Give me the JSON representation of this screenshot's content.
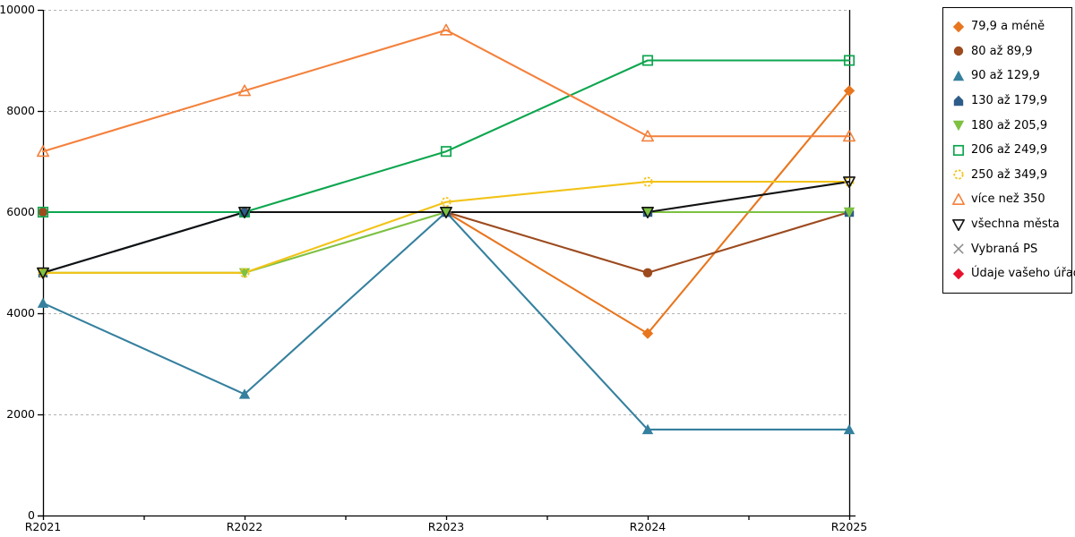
{
  "chart_data": {
    "type": "line",
    "title": "",
    "xlabel": "",
    "ylabel": "",
    "x_categories": [
      "R2021",
      "R2022",
      "R2023",
      "R2024",
      "R2025"
    ],
    "ylim": [
      0,
      10000
    ],
    "y_ticks": [
      0,
      2000,
      4000,
      6000,
      8000,
      10000
    ],
    "grid": "horizontal-dashed",
    "legend_position": "top-right-outside",
    "series": [
      {
        "name": "79,9 a méně",
        "color": "#e8761e",
        "marker": "diamond",
        "values": [
          6000,
          6000,
          6000,
          3600,
          8400
        ]
      },
      {
        "name": "80 až 89,9",
        "color": "#9c4a1e",
        "marker": "circle",
        "values": [
          6000,
          6000,
          6000,
          4800,
          6000
        ]
      },
      {
        "name": "90 až 129,9",
        "color": "#35809e",
        "marker": "triangle-up",
        "values": [
          4200,
          2400,
          6000,
          1700,
          1700
        ]
      },
      {
        "name": "130 až 179,9",
        "color": "#2e5c8a",
        "marker": "pentagon",
        "values": [
          4800,
          6000,
          6000,
          6000,
          6000
        ]
      },
      {
        "name": "180 až 205,9",
        "color": "#7dc142",
        "marker": "triangle-down",
        "values": [
          4800,
          4800,
          6000,
          6000,
          6000
        ]
      },
      {
        "name": "206 až 249,9",
        "color": "#0da64f",
        "marker": "square-open",
        "values": [
          6000,
          6000,
          7200,
          9000,
          9000
        ]
      },
      {
        "name": "250 až 349,9",
        "color": "#f2c318",
        "marker": "circle-open-dashed",
        "values": [
          4800,
          4800,
          6200,
          6600,
          6600
        ]
      },
      {
        "name": "více než 350",
        "color": "#f4813c",
        "marker": "triangle-up-open",
        "values": [
          7200,
          8400,
          9600,
          7500,
          7500
        ]
      },
      {
        "name": "všechna města",
        "color": "#111111",
        "marker": "triangle-down-open",
        "values": [
          4800,
          6000,
          6000,
          6000,
          6600
        ]
      },
      {
        "name": "Vybraná PS",
        "color": "#8c8c8c",
        "marker": "x-cross",
        "values": []
      },
      {
        "name": "Údaje vašeho úřadu",
        "color": "#e8112d",
        "marker": "diamond",
        "values": []
      }
    ],
    "axis_color": "#000000",
    "gridline_color": "#b3b3b3",
    "plot_border_right": true
  }
}
